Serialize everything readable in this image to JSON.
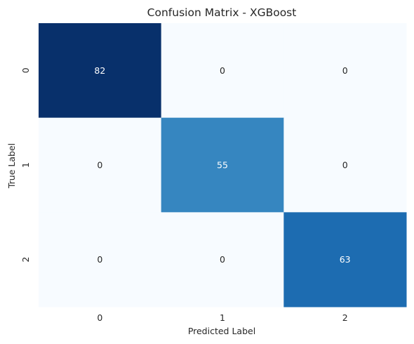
{
  "chart_data": {
    "type": "heatmap",
    "title": "Confusion Matrix - XGBoost",
    "xlabel": "Predicted Label",
    "ylabel": "True Label",
    "x_ticks": [
      "0",
      "1",
      "2"
    ],
    "y_ticks": [
      "0",
      "1",
      "2"
    ],
    "matrix": [
      [
        82,
        0,
        0
      ],
      [
        0,
        55,
        0
      ],
      [
        0,
        0,
        63
      ]
    ],
    "colormap": "Blues",
    "vmin": 0,
    "vmax": 82,
    "colorbar": false,
    "grid": false
  }
}
